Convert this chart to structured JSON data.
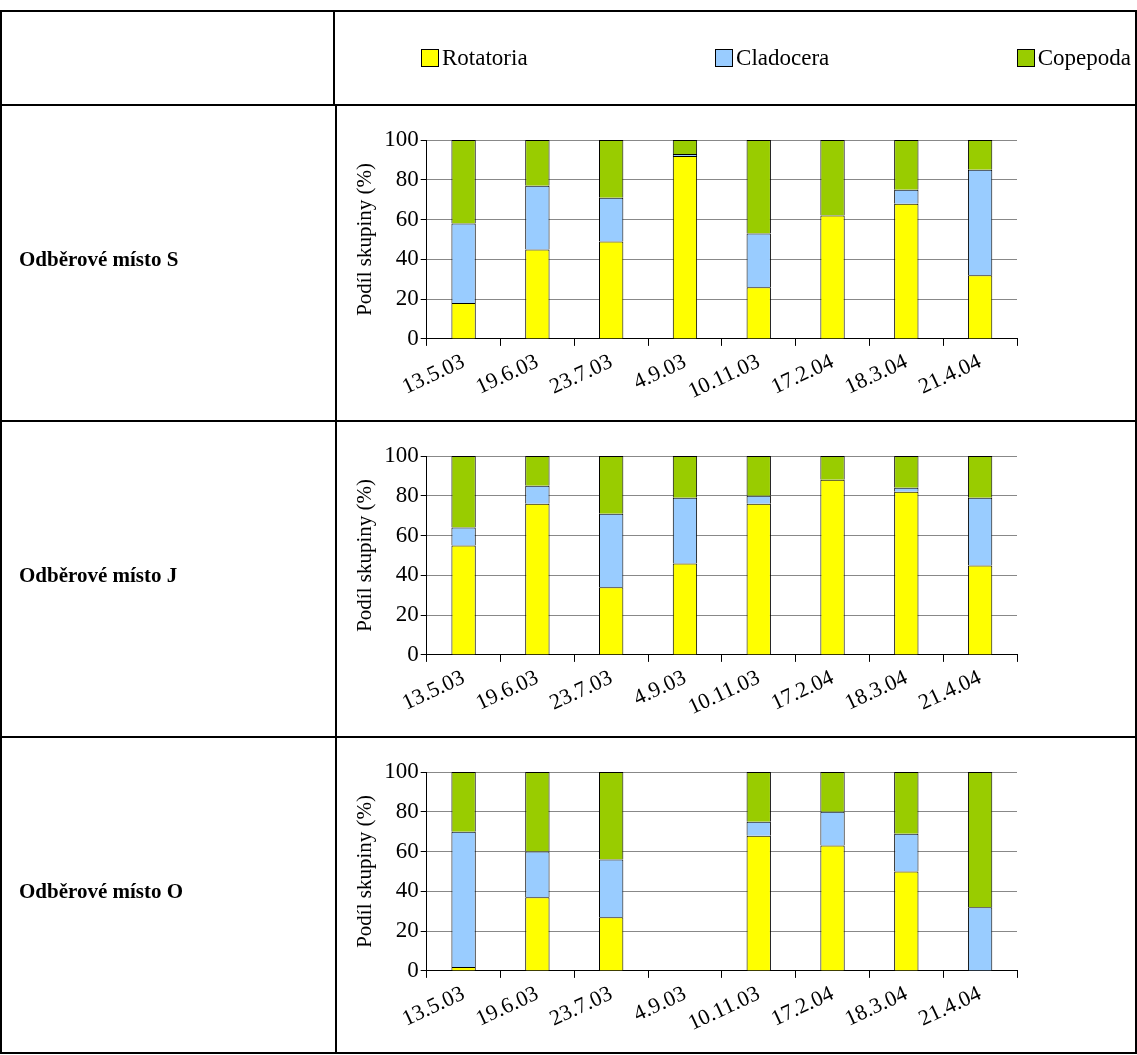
{
  "chart_data": [
    {
      "type": "bar",
      "annotations": [
        "Odběrové místo S"
      ],
      "ylabel": "Podíl skupiny (%)",
      "stacked": true,
      "legend": "top",
      "grid": "y",
      "ylim": [
        0,
        100
      ],
      "yticks": [
        0,
        20,
        40,
        60,
        80,
        100
      ],
      "categories": [
        "13.5.03",
        "19.6.03",
        "23.7.03",
        "4.9.03",
        "10.11.03",
        "17.2.04",
        "18.3.04",
        "21.4.04"
      ],
      "series": [
        {
          "name": "Rotatoria",
          "color": "#ffff00",
          "values": [
            18,
            45,
            49,
            92,
            26,
            62,
            68,
            32
          ]
        },
        {
          "name": "Cladocera",
          "color": "#99ccff",
          "values": [
            40,
            32,
            22,
            1,
            27,
            0,
            7,
            53
          ]
        },
        {
          "name": "Copepoda",
          "color": "#99cc00",
          "values": [
            42,
            23,
            29,
            7,
            47,
            38,
            25,
            15
          ]
        }
      ]
    },
    {
      "type": "bar",
      "annotations": [
        "Odběrové místo J"
      ],
      "ylabel": "Podíl skupiny (%)",
      "stacked": true,
      "grid": "y",
      "ylim": [
        0,
        100
      ],
      "yticks": [
        0,
        20,
        40,
        60,
        80,
        100
      ],
      "categories": [
        "13.5.03",
        "19.6.03",
        "23.7.03",
        "4.9.03",
        "10.11.03",
        "17.2.04",
        "18.3.04",
        "21.4.04"
      ],
      "series": [
        {
          "color": "#ffff00",
          "values": [
            55,
            76,
            34,
            46,
            76,
            88,
            82,
            45
          ]
        },
        {
          "color": "#99ccff",
          "values": [
            9,
            9,
            37,
            33,
            4,
            0,
            2,
            34
          ]
        },
        {
          "color": "#99cc00",
          "values": [
            36,
            15,
            29,
            21,
            20,
            12,
            16,
            21
          ]
        }
      ]
    },
    {
      "type": "bar",
      "annotations": [
        "Odběrové místo O"
      ],
      "ylabel": "Podíl skupiny (%)",
      "stacked": true,
      "grid": "y",
      "ylim": [
        0,
        100
      ],
      "yticks": [
        0,
        20,
        40,
        60,
        80,
        100
      ],
      "categories": [
        "13.5.03",
        "19.6.03",
        "23.7.03",
        "4.9.03",
        "10.11.03",
        "17.2.04",
        "18.3.04",
        "21.4.04"
      ],
      "series": [
        {
          "color": "#ffff00",
          "values": [
            2,
            37,
            27,
            null,
            68,
            63,
            50,
            0
          ]
        },
        {
          "color": "#99ccff",
          "values": [
            68,
            23,
            29,
            null,
            7,
            17,
            19,
            32
          ]
        },
        {
          "color": "#99cc00",
          "values": [
            30,
            40,
            44,
            null,
            25,
            20,
            31,
            68
          ]
        }
      ]
    }
  ]
}
